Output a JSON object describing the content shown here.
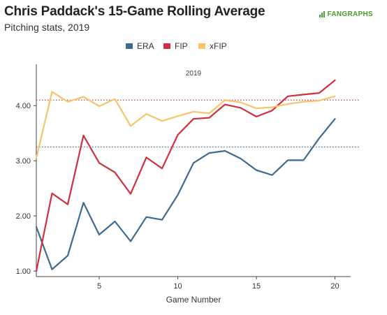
{
  "header": {
    "title": "Chris Paddack's 15-Game Rolling Average",
    "subtitle": "Pitching stats, 2019",
    "logo_text": "FANGRAPHS"
  },
  "colors": {
    "ERA": "#3d6a91",
    "FIP": "#d0303e",
    "xFIP": "#f7c36b",
    "logo": "#4a9b2a"
  },
  "chart_data": {
    "type": "line",
    "title": "Chris Paddack's 15-Game Rolling Average",
    "subtitle": "Pitching stats, 2019",
    "panel_label": "2019",
    "xlabel": "Game Number",
    "ylabel": "",
    "xlim": [
      1,
      21
    ],
    "ylim": [
      0.9,
      4.75
    ],
    "x_ticks": [
      5,
      10,
      15,
      20
    ],
    "y_ticks": [
      1.0,
      2.0,
      3.0,
      4.0
    ],
    "y_tick_labels": [
      "1.00",
      "2.00",
      "3.00",
      "4.00"
    ],
    "legend_position": "top",
    "grid": false,
    "x": [
      1,
      2,
      3,
      4,
      5,
      6,
      7,
      8,
      9,
      10,
      11,
      12,
      13,
      14,
      15,
      16,
      17,
      18,
      19,
      20
    ],
    "series": [
      {
        "name": "ERA",
        "values": [
          1.8,
          1.03,
          1.28,
          2.24,
          1.66,
          1.9,
          1.54,
          1.98,
          1.93,
          2.38,
          2.96,
          3.14,
          3.18,
          3.04,
          2.83,
          2.74,
          3.01,
          3.01,
          3.41,
          3.76
        ]
      },
      {
        "name": "FIP",
        "values": [
          1.0,
          2.41,
          2.21,
          3.46,
          2.96,
          2.79,
          2.4,
          3.06,
          2.86,
          3.47,
          3.76,
          3.78,
          4.02,
          3.96,
          3.8,
          3.91,
          4.17,
          4.2,
          4.23,
          4.46
        ]
      },
      {
        "name": "xFIP",
        "values": [
          3.05,
          4.25,
          4.07,
          4.16,
          3.99,
          4.12,
          3.63,
          3.85,
          3.72,
          3.81,
          3.89,
          3.86,
          4.1,
          4.06,
          3.95,
          3.97,
          4.03,
          4.07,
          4.09,
          4.17
        ]
      }
    ],
    "reference_lines": [
      {
        "series": "ERA",
        "value": 3.25
      },
      {
        "series": "FIP",
        "value": 4.1
      }
    ]
  }
}
